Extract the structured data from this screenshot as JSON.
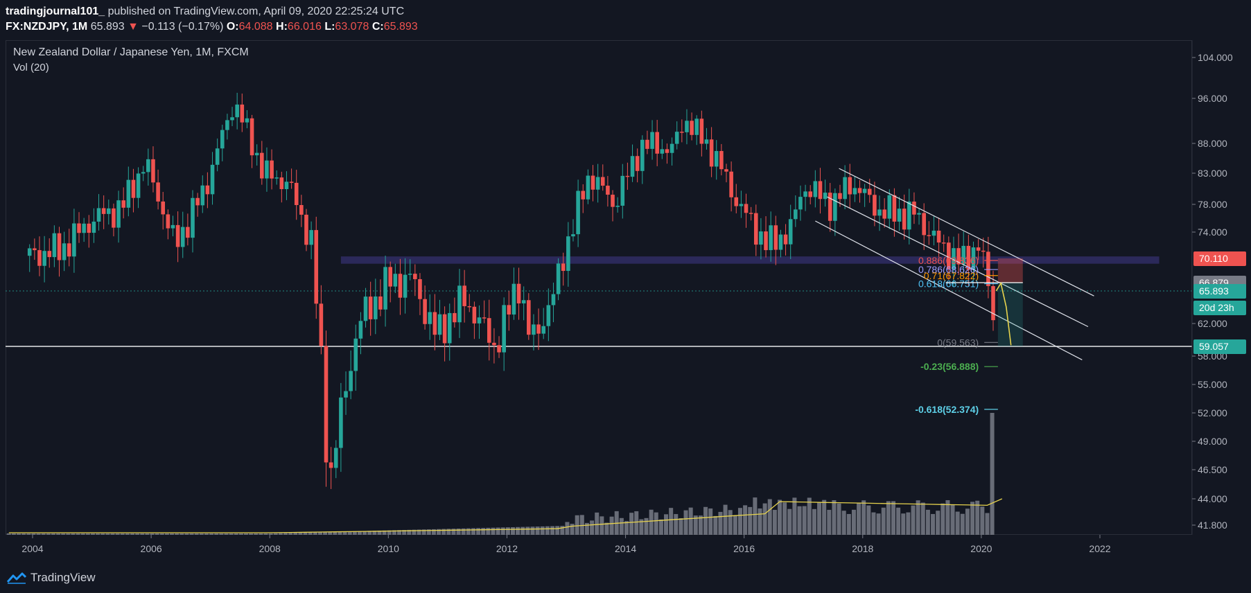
{
  "header": {
    "author": "tradingjournal101_",
    "published_text": " published on TradingView.com, April 09, 2020 22:25:24 UTC",
    "symbol": "FX:NZDJPY, 1M",
    "price": "65.893",
    "change_arrow": "▼",
    "change": "−0.113 (−0.17%)",
    "open_label": "O:",
    "open": "64.088",
    "high_label": "H:",
    "high": "66.016",
    "low_label": "L:",
    "low": "63.078",
    "close_label": "C:",
    "close": "65.893"
  },
  "legend": {
    "title": "New Zealand Dollar / Japanese Yen, 1M, FXCM",
    "indicator": "Vol (20)"
  },
  "footer": {
    "brand": "TradingView",
    "icon": "tradingview-logo-icon"
  },
  "colors": {
    "background": "#131722",
    "up": "#26a69a",
    "down": "#ef5350",
    "volume": "#787b86",
    "vol_ma": "#e8d44d",
    "fib_0618": "#4fc3f7",
    "fib_neg": "#5ed0e8",
    "fib_green": "#4caf50",
    "zone": "#2c2a5e"
  },
  "chart_data": {
    "type": "candlestick",
    "title": "New Zealand Dollar / Japanese Yen, 1M, FXCM",
    "x_ticks": [
      "2004",
      "2006",
      "2008",
      "2010",
      "2012",
      "2014",
      "2016",
      "2018",
      "2020",
      "2022"
    ],
    "y_ticks": [
      "104.000",
      "96.000",
      "88.000",
      "83.000",
      "78.000",
      "74.000",
      "62.000",
      "58.000",
      "55.000",
      "52.000",
      "49.000",
      "46.500",
      "44.000",
      "41.800"
    ],
    "price_labels": [
      {
        "text": "70.110",
        "value": 70.11,
        "color": "#ef5350"
      },
      {
        "text": "66.879",
        "value": 66.879,
        "color": "#787b86"
      },
      {
        "text": "65.893",
        "value": 65.893,
        "color": "#26a69a"
      },
      {
        "text": "20d 23h",
        "value": 63.9,
        "color": "#26a69a"
      },
      {
        "text": "59.057",
        "value": 59.057,
        "color": "#26a69a"
      }
    ],
    "horizontal_lines": [
      {
        "value": 59.057,
        "style": "solid",
        "color": "#ffffff"
      },
      {
        "value": 65.893,
        "style": "dotted",
        "color": "#26a69a"
      }
    ],
    "zone": {
      "from_year": 2009.2,
      "to_year": 2023.0,
      "low": 69.4,
      "high": 70.4
    },
    "fib_levels": [
      {
        "label": "0.886(69.836)",
        "text": "0.886(69.836)",
        "value": 69.836,
        "color": "#ef5350"
      },
      {
        "label": "0.786(68.626)",
        "text": "0.786(68.626)",
        "value": 68.626,
        "color": "#9c9cff"
      },
      {
        "label": "0.71(67.822)",
        "text": "0.71(67.822)",
        "value": 67.822,
        "color": "#ff9800"
      },
      {
        "label": "0.618(66.751)",
        "text": "0.618(66.751)",
        "value": 66.751,
        "color": "#4fc3f7"
      },
      {
        "label": "0(59.563)",
        "text": "0(59.563)",
        "value": 59.563,
        "color": "#787b86"
      },
      {
        "label": "-0.23(56.888)",
        "text": "-0.23(56.888)",
        "value": 56.888,
        "color": "#4caf50"
      },
      {
        "label": "-0.618(52.374)",
        "text": "-0.618(52.374)",
        "value": 52.374,
        "color": "#5ed0e8"
      }
    ],
    "channel_lines": [
      {
        "x1": 2017.6,
        "y1": 83.8,
        "x2": 2021.9,
        "y2": 65.3
      },
      {
        "x1": 2017.4,
        "y1": 79.2,
        "x2": 2021.8,
        "y2": 61.6
      },
      {
        "x1": 2017.2,
        "y1": 75.6,
        "x2": 2021.7,
        "y2": 57.6
      }
    ],
    "swing_points": [
      {
        "year": 2003.95,
        "price": 70.5
      },
      {
        "year": 2004.5,
        "price": 71.5
      },
      {
        "year": 2005.0,
        "price": 75.8
      },
      {
        "year": 2005.5,
        "price": 77.5
      },
      {
        "year": 2005.9,
        "price": 84.8
      },
      {
        "year": 2006.4,
        "price": 72.0
      },
      {
        "year": 2006.9,
        "price": 80.2
      },
      {
        "year": 2007.4,
        "price": 95.5
      },
      {
        "year": 2007.9,
        "price": 83.0
      },
      {
        "year": 2008.3,
        "price": 81.5
      },
      {
        "year": 2008.7,
        "price": 72.5
      },
      {
        "year": 2009.0,
        "price": 45.0
      },
      {
        "year": 2009.5,
        "price": 62.0
      },
      {
        "year": 2010.0,
        "price": 67.0
      },
      {
        "year": 2010.4,
        "price": 67.5
      },
      {
        "year": 2010.8,
        "price": 60.5
      },
      {
        "year": 2011.3,
        "price": 65.0
      },
      {
        "year": 2011.8,
        "price": 59.0
      },
      {
        "year": 2012.2,
        "price": 67.0
      },
      {
        "year": 2012.4,
        "price": 59.5
      },
      {
        "year": 2012.8,
        "price": 65.5
      },
      {
        "year": 2013.0,
        "price": 72.0
      },
      {
        "year": 2013.4,
        "price": 83.0
      },
      {
        "year": 2013.8,
        "price": 78.0
      },
      {
        "year": 2014.3,
        "price": 88.0
      },
      {
        "year": 2014.8,
        "price": 87.0
      },
      {
        "year": 2015.0,
        "price": 92.5
      },
      {
        "year": 2015.5,
        "price": 86.0
      },
      {
        "year": 2015.9,
        "price": 78.0
      },
      {
        "year": 2016.4,
        "price": 72.0
      },
      {
        "year": 2016.8,
        "price": 74.5
      },
      {
        "year": 2017.0,
        "price": 81.0
      },
      {
        "year": 2017.5,
        "price": 78.0
      },
      {
        "year": 2017.8,
        "price": 81.5
      },
      {
        "year": 2018.3,
        "price": 77.0
      },
      {
        "year": 2018.9,
        "price": 76.5
      },
      {
        "year": 2019.3,
        "price": 72.0
      },
      {
        "year": 2019.7,
        "price": 69.5
      },
      {
        "year": 2019.95,
        "price": 72.5
      },
      {
        "year": 2020.2,
        "price": 63.0
      },
      {
        "year": 2020.25,
        "price": 65.9
      }
    ],
    "projection": [
      {
        "year": 2020.25,
        "price": 65.9
      },
      {
        "year": 2020.33,
        "price": 66.8
      },
      {
        "year": 2020.42,
        "price": 64.0
      },
      {
        "year": 2020.5,
        "price": 59.2
      }
    ],
    "volume_spike": {
      "year": 2020.2,
      "value": "52.000"
    },
    "x_range": [
      2003.5,
      2023.0
    ],
    "grid": false,
    "legend_position": "top-left"
  }
}
